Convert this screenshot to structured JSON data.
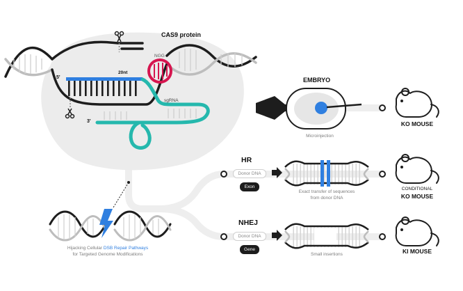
{
  "cas9": {
    "title": "CAS9 protein",
    "pam_label": "NGG",
    "guide_length_label": "20nt",
    "sgrna_label": "sgRNA",
    "five_prime": "5'",
    "three_prime": "3'"
  },
  "embryo": {
    "title": "EMBRYO",
    "caption": "Microinjection",
    "outcome": "KO MOUSE"
  },
  "hr": {
    "title": "HR",
    "donor_label": "Donor DNA",
    "insert_label": "Exon",
    "caption_line1": "Exact transfer of sequences",
    "caption_line2": "from donor DNA",
    "outcome_line1": "CONDITIONAL",
    "outcome_line2": "KO MOUSE"
  },
  "nhej": {
    "title": "NHEJ",
    "donor_label": "Donor DNA",
    "insert_label": "Gene",
    "caption": "Small insertions",
    "outcome": "KI MOUSE"
  },
  "dsb": {
    "caption_prefix": "Hijacking Cellular ",
    "caption_highlight": "DSB Repair Pathways",
    "caption_line2": "for Targeted Genome Modifications"
  },
  "colors": {
    "dark": "#1d1d1d",
    "blue": "#2f7fe0",
    "teal": "#25b8ad",
    "crimson": "#d6154f",
    "protein_gray": "#ececec",
    "track_gray": "#eeeeee"
  }
}
